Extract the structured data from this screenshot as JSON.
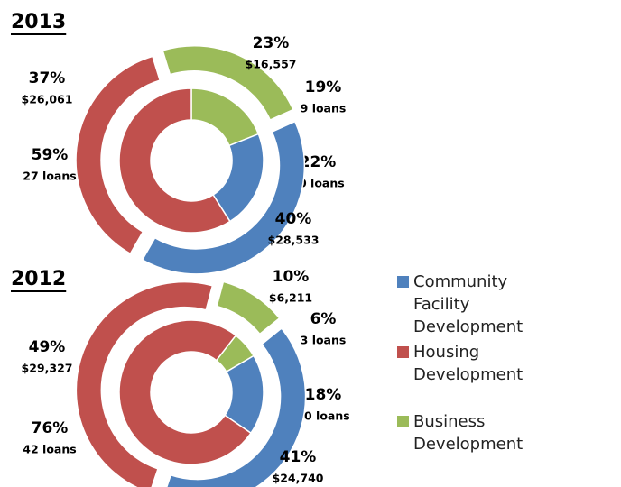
{
  "legend": {
    "categories": [
      "Community Facility Development",
      "Housing Development",
      "Business Development"
    ],
    "colors": [
      "#4f81bd",
      "#c0504d",
      "#9bbb59"
    ]
  },
  "chart_data": [
    {
      "type": "donut",
      "title": "2013",
      "inner": {
        "values": [
          22,
          59,
          19
        ],
        "value_labels": [
          "22%",
          "59%",
          "19%"
        ],
        "counts": [
          10,
          27,
          9
        ],
        "count_labels": [
          "10 loans",
          "27 loans",
          "9 loans"
        ]
      },
      "outer": {
        "values": [
          40,
          37,
          23
        ],
        "value_labels": [
          "40%",
          "37%",
          "23%"
        ],
        "amounts": [
          28533,
          26061,
          16557
        ],
        "amount_labels": [
          "$28,533",
          "$26,061",
          "$16,557"
        ]
      }
    },
    {
      "type": "donut",
      "title": "2012",
      "inner": {
        "values": [
          18,
          76,
          6
        ],
        "value_labels": [
          "18%",
          "76%",
          "6%"
        ],
        "counts": [
          10,
          42,
          3
        ],
        "count_labels": [
          "10 loans",
          "42 loans",
          "3 loans"
        ]
      },
      "outer": {
        "values": [
          41,
          49,
          10
        ],
        "value_labels": [
          "41%",
          "49%",
          "10%"
        ],
        "amounts": [
          24740,
          29327,
          6211
        ],
        "amount_labels": [
          "$24,740",
          "$29,327",
          "$6,211"
        ]
      }
    }
  ]
}
